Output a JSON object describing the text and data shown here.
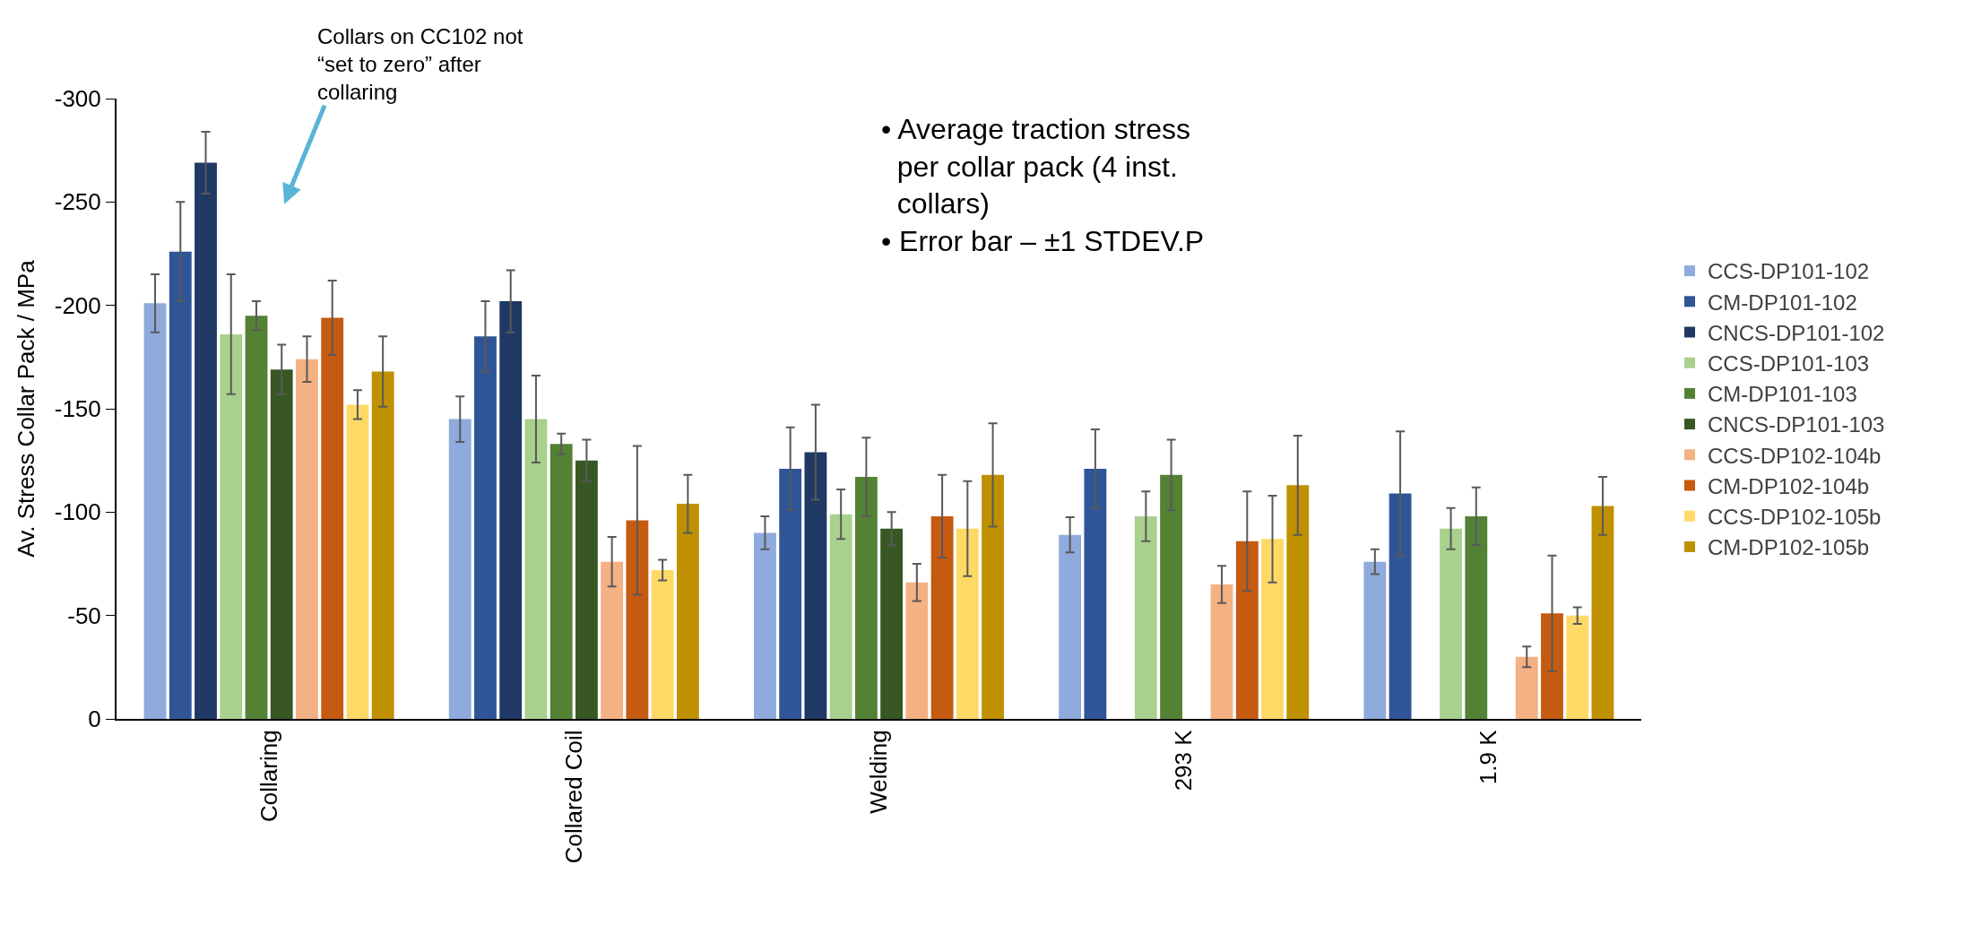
{
  "chart_data": {
    "type": "bar",
    "ylabel": "Av. Stress Collar Pack / MPa",
    "categories": [
      "Collaring",
      "Collared Coil",
      "Welding",
      "293 K",
      "1.9 K"
    ],
    "series": [
      {
        "name": "CCS-DP101-102",
        "color": "#8faadc",
        "values": [
          -201,
          -145,
          -90,
          -89,
          -76
        ],
        "errors": [
          14,
          11,
          8,
          8.5,
          6
        ]
      },
      {
        "name": "CM-DP101-102",
        "color": "#2f5597",
        "values": [
          -226,
          -185,
          -121,
          -121,
          -109
        ],
        "errors": [
          24,
          17,
          20,
          19,
          30
        ]
      },
      {
        "name": "CNCS-DP101-102",
        "color": "#203864",
        "values": [
          -269,
          -202,
          -129,
          null,
          null
        ],
        "errors": [
          15,
          15,
          23,
          null,
          null
        ]
      },
      {
        "name": "CCS-DP101-103",
        "color": "#a9d18e",
        "values": [
          -186,
          -145,
          -99,
          -98,
          -92
        ],
        "errors": [
          29,
          21,
          12,
          12,
          10
        ]
      },
      {
        "name": "CM-DP101-103",
        "color": "#548235",
        "values": [
          -195,
          -133,
          -117,
          -118,
          -98
        ],
        "errors": [
          7,
          5,
          19,
          17,
          14
        ]
      },
      {
        "name": "CNCS-DP101-103",
        "color": "#385723",
        "values": [
          -169,
          -125,
          -92,
          null,
          null
        ],
        "errors": [
          12,
          10,
          8,
          null,
          null
        ]
      },
      {
        "name": "CCS-DP102-104b",
        "color": "#f4b183",
        "values": [
          -174,
          -76,
          -66,
          -65,
          -30
        ],
        "errors": [
          11,
          12,
          9,
          9,
          5
        ]
      },
      {
        "name": "CM-DP102-104b",
        "color": "#c55a11",
        "values": [
          -194,
          -96,
          -98,
          -86,
          -51
        ],
        "errors": [
          18,
          36,
          20,
          24,
          28
        ]
      },
      {
        "name": "CCS-DP102-105b",
        "color": "#ffd966",
        "values": [
          -152,
          -72,
          -92,
          -87,
          -50
        ],
        "errors": [
          7,
          5,
          23,
          21,
          4
        ]
      },
      {
        "name": "CM-DP102-105b",
        "color": "#bf9000",
        "values": [
          -168,
          -104,
          -118,
          -113,
          -103
        ],
        "errors": [
          17,
          14,
          25,
          24,
          14
        ]
      }
    ],
    "ylim": [
      0,
      -300
    ],
    "yticks": [
      0,
      -50,
      -100,
      -150,
      -200,
      -250,
      -300
    ],
    "legend": "right",
    "annotations": [
      "Collars on CC102 not\n“set to zero” after\ncollaring",
      "• Average traction stress\n  per collar pack (4 inst.\n  collars)\n• Error bar – ±1 STDEV.P"
    ]
  }
}
